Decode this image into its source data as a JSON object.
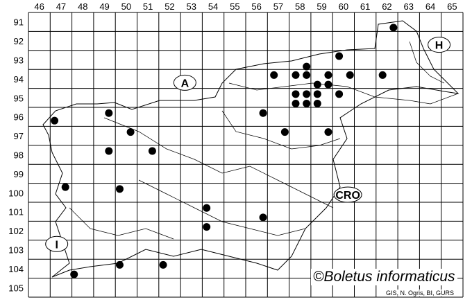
{
  "map": {
    "columns": [
      46,
      47,
      48,
      49,
      50,
      51,
      52,
      53,
      54,
      55,
      56,
      57,
      58,
      59,
      60,
      61,
      62,
      63,
      64,
      65
    ],
    "rows": [
      91,
      92,
      93,
      94,
      95,
      96,
      97,
      98,
      99,
      100,
      101,
      102,
      103,
      104,
      105
    ],
    "regions": [
      {
        "id": "A",
        "label": "A",
        "col": 52.7,
        "row": 94.2
      },
      {
        "id": "H",
        "label": "H",
        "col": 64.4,
        "row": 92.2
      },
      {
        "id": "CRO",
        "label": "CRO",
        "col": 60.2,
        "row": 100.1
      },
      {
        "id": "I",
        "label": "I",
        "col": 46.8,
        "row": 102.7
      }
    ],
    "dot_color": "#000000",
    "occurrences": [
      [
        62.3,
        91.3
      ],
      [
        59.8,
        92.8
      ],
      [
        58.3,
        93.35
      ],
      [
        56.8,
        93.8
      ],
      [
        57.8,
        93.8
      ],
      [
        58.3,
        93.8
      ],
      [
        59.3,
        93.8
      ],
      [
        60.3,
        93.8
      ],
      [
        61.8,
        93.8
      ],
      [
        58.8,
        94.3
      ],
      [
        59.3,
        94.3
      ],
      [
        57.8,
        94.8
      ],
      [
        58.3,
        94.8
      ],
      [
        58.8,
        94.8
      ],
      [
        59.8,
        94.8
      ],
      [
        57.8,
        95.3
      ],
      [
        58.3,
        95.3
      ],
      [
        58.8,
        95.3
      ],
      [
        56.3,
        95.8
      ],
      [
        57.3,
        96.8
      ],
      [
        59.3,
        96.8
      ],
      [
        46.7,
        96.2
      ],
      [
        49.2,
        95.8
      ],
      [
        50.2,
        96.8
      ],
      [
        49.2,
        97.8
      ],
      [
        51.2,
        97.8
      ],
      [
        47.2,
        99.7
      ],
      [
        49.7,
        99.8
      ],
      [
        53.7,
        100.8
      ],
      [
        53.7,
        101.8
      ],
      [
        56.3,
        101.3
      ],
      [
        49.7,
        103.8
      ],
      [
        51.7,
        103.8
      ],
      [
        47.6,
        104.3
      ]
    ]
  },
  "copyright": "©Boletus informaticus",
  "credit": "GIS, N. Ogris, BI, GURS"
}
